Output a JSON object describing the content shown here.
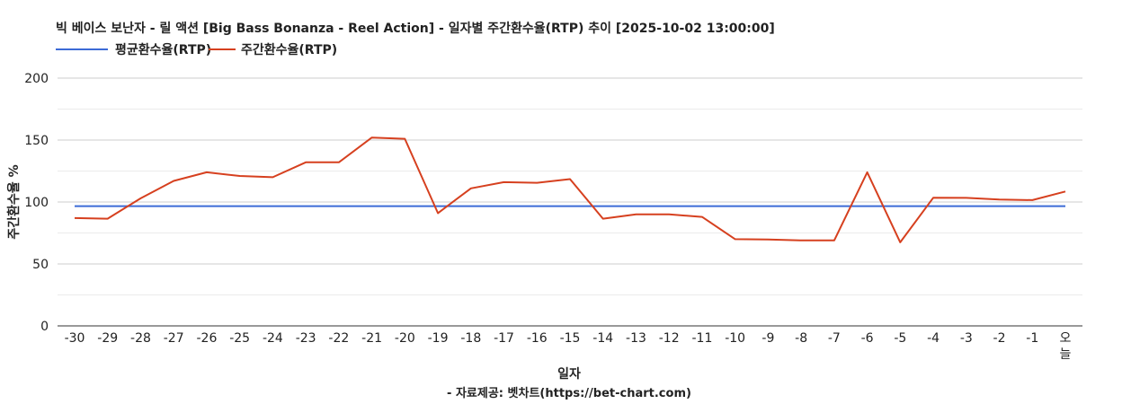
{
  "chart_data": {
    "type": "line",
    "title": "빅 베이스 보난자 - 릴 액션 [Big Bass Bonanza - Reel Action] - 일자별 주간환수율(RTP) 추이 [2025-10-02 13:00:00]",
    "xlabel": "일자",
    "ylabel": "주간환수율 %",
    "source": "- 자료제공: 벳차트(https://bet-chart.com)",
    "ylim": [
      0,
      200
    ],
    "yticks": [
      0,
      50,
      100,
      150,
      200
    ],
    "categories": [
      "-30",
      "-29",
      "-28",
      "-27",
      "-26",
      "-25",
      "-24",
      "-23",
      "-22",
      "-21",
      "-20",
      "-19",
      "-18",
      "-17",
      "-16",
      "-15",
      "-14",
      "-13",
      "-12",
      "-11",
      "-10",
      "-9",
      "-8",
      "-7",
      "-6",
      "-5",
      "-4",
      "-3",
      "-2",
      "-1",
      "오늘"
    ],
    "series": [
      {
        "name": "평균환수율(RTP)",
        "color": "#3c6bd6",
        "values": [
          96.7,
          96.7,
          96.7,
          96.7,
          96.7,
          96.7,
          96.7,
          96.7,
          96.7,
          96.7,
          96.7,
          96.7,
          96.7,
          96.7,
          96.7,
          96.7,
          96.7,
          96.7,
          96.7,
          96.7,
          96.7,
          96.7,
          96.7,
          96.7,
          96.7,
          96.7,
          96.7,
          96.7,
          96.7,
          96.7,
          96.7
        ]
      },
      {
        "name": "주간환수율(RTP)",
        "color": "#d6401f",
        "values": [
          87,
          86.5,
          103,
          117,
          124,
          121,
          120,
          132,
          132,
          152,
          151,
          91,
          111,
          116,
          115.5,
          118.5,
          86.5,
          90,
          90,
          88,
          70,
          69.7,
          69,
          69,
          124,
          67.5,
          103.5,
          103.3,
          102,
          101.5,
          108.5
        ]
      }
    ],
    "grid": true,
    "legend": "top-left"
  }
}
